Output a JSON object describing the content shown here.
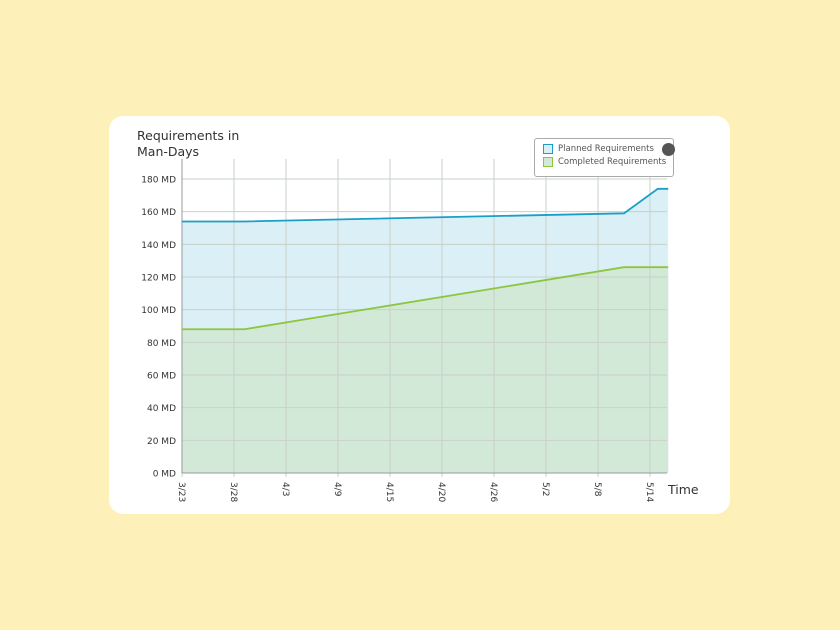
{
  "chart_data": {
    "type": "area",
    "ylabel": "Requirements in Man-Days",
    "xlabel": "Time",
    "x_tick_labels": [
      "3/23",
      "3/28",
      "4/3",
      "4/9",
      "4/15",
      "4/20",
      "4/26",
      "5/2",
      "5/8",
      "5/14"
    ],
    "y_tick_labels": [
      "0 MD",
      "20 MD",
      "40 MD",
      "60 MD",
      "80 MD",
      "100 MD",
      "120 MD",
      "140 MD",
      "160 MD",
      "180 MD"
    ],
    "ylim": [
      0,
      180
    ],
    "xlim": [
      0,
      9.35
    ],
    "grid": true,
    "legend_position": "top-right",
    "series": [
      {
        "name": "Planned Requirements",
        "color": "#1a9fc8",
        "fill": "#dbeff6",
        "x": [
          0,
          1.2,
          8.5,
          9.15,
          9.35
        ],
        "y": [
          154,
          154,
          159,
          174,
          174
        ]
      },
      {
        "name": "Completed Requirements",
        "color": "#8cc63f",
        "fill": "#d3e9d8",
        "x": [
          0,
          1.2,
          8.5,
          9.35
        ],
        "y": [
          88,
          88,
          126,
          126
        ]
      }
    ]
  }
}
